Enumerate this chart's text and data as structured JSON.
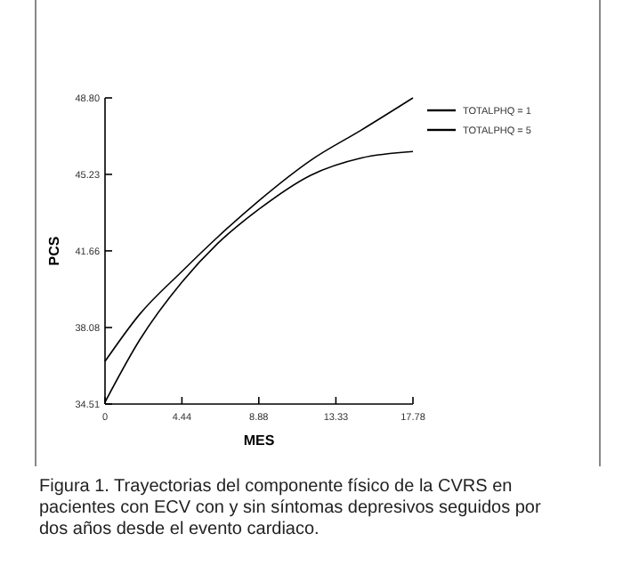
{
  "chart_data": {
    "type": "line",
    "xlabel": "MES",
    "ylabel": "PCS",
    "x": [
      0,
      2,
      4.44,
      6.5,
      8.88,
      11.9,
      14.8,
      17.78
    ],
    "series": [
      {
        "name": "TOTALPHQ = 1",
        "color": "#000000",
        "values": [
          36.5,
          38.7,
          40.7,
          42.3,
          44.0,
          45.9,
          47.3,
          48.8
        ]
      },
      {
        "name": "TOTALPHQ = 5",
        "color": "#000000",
        "values": [
          34.6,
          37.5,
          40.2,
          42.0,
          43.6,
          45.2,
          46.0,
          46.3
        ]
      }
    ],
    "xlim": [
      0,
      17.78
    ],
    "xticks": [
      0,
      4.44,
      8.88,
      13.33,
      17.78
    ],
    "ylim": [
      34.51,
      48.8
    ],
    "yticks": [
      34.51,
      38.08,
      41.66,
      45.23,
      {
        "value": 48.8,
        "label": "48.80"
      }
    ],
    "legend": "top right",
    "grid": false,
    "marker": "none",
    "line_style": "solid",
    "annotations": [
      "Figura 1. Trayectorias del componente físico de la CVRS en pacientes con ECV con y sin síntomas depresivos seguidos por dos años desde el evento cardiaco."
    ]
  }
}
